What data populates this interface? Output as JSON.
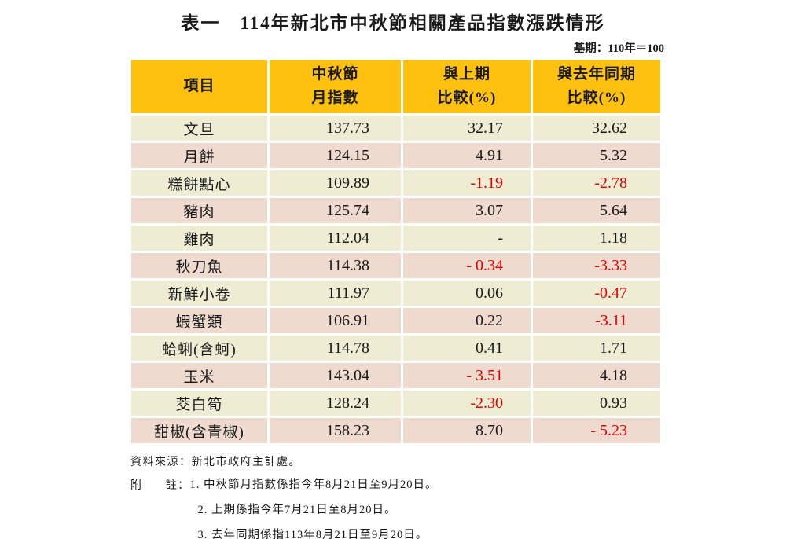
{
  "title": "表一　114年新北市中秋節相關產品指數漲跌情形",
  "base_period_note": "基期：110年＝100",
  "table": {
    "headers": [
      {
        "line1": "項目",
        "line2": ""
      },
      {
        "line1": "中秋節",
        "line2": "月指數"
      },
      {
        "line1": "與上期",
        "line2": "比較(%)"
      },
      {
        "line1": "與去年同期",
        "line2": "比較(%)"
      }
    ],
    "rows": [
      {
        "item": "文旦",
        "index": "137.73",
        "vs_prev": "32.17",
        "vs_last_year": "32.62"
      },
      {
        "item": "月餅",
        "index": "124.15",
        "vs_prev": "4.91",
        "vs_last_year": "5.32"
      },
      {
        "item": "糕餅點心",
        "index": "109.89",
        "vs_prev": "-1.19",
        "vs_last_year": "-2.78"
      },
      {
        "item": "豬肉",
        "index": "125.74",
        "vs_prev": "3.07",
        "vs_last_year": "5.64"
      },
      {
        "item": "雞肉",
        "index": "112.04",
        "vs_prev": "-",
        "vs_last_year": "1.18"
      },
      {
        "item": "秋刀魚",
        "index": "114.38",
        "vs_prev": "- 0.34",
        "vs_last_year": "-3.33"
      },
      {
        "item": "新鮮小卷",
        "index": "111.97",
        "vs_prev": "0.06",
        "vs_last_year": "-0.47"
      },
      {
        "item": "蝦蟹類",
        "index": "106.91",
        "vs_prev": "0.22",
        "vs_last_year": "-3.11"
      },
      {
        "item": "蛤蜊(含蚵)",
        "index": "114.78",
        "vs_prev": "0.41",
        "vs_last_year": "1.71"
      },
      {
        "item": "玉米",
        "index": "143.04",
        "vs_prev": "- 3.51",
        "vs_last_year": "4.18"
      },
      {
        "item": "茭白筍",
        "index": "128.24",
        "vs_prev": "-2.30",
        "vs_last_year": "0.93"
      },
      {
        "item": "甜椒(含青椒)",
        "index": "158.23",
        "vs_prev": "8.70",
        "vs_last_year": "- 5.23"
      }
    ]
  },
  "footer": {
    "source": "資料來源：新北市政府主計處。",
    "note_label": "附",
    "note_label2": "註：",
    "notes": [
      "1. 中秋節月指數係指今年8月21日至9月20日。",
      "2. 上期係指今年7月21日至8月20日。",
      "3. 去年同期係指113年8月21日至9月20日。"
    ]
  },
  "colors": {
    "header_bg": "#FFC110",
    "row_cream": "#EEEDD4",
    "row_pink": "#EFDACF",
    "negative_red": "#E90000",
    "text_color": "#1a1a1a"
  }
}
